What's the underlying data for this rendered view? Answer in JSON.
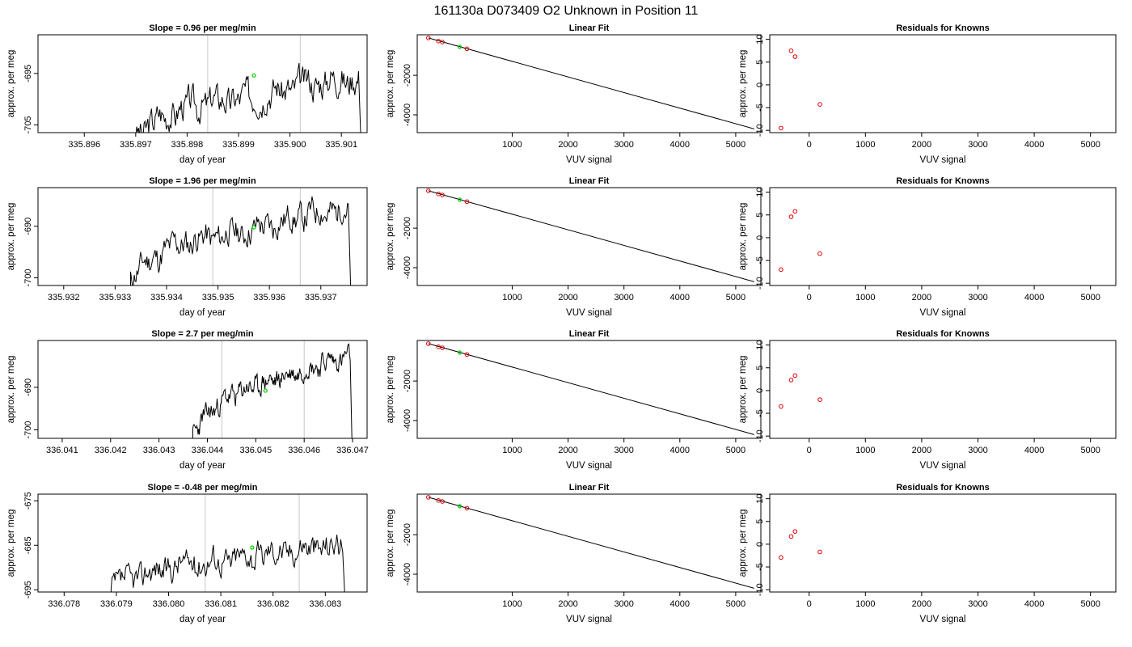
{
  "figure": {
    "title": "161130a      D073409   O2 Unknown in Position  11"
  },
  "colors": {
    "trace": "#000000",
    "marker_known": "#dd0000",
    "marker_unknown": "#00cc00",
    "vline": "#c8c8c8"
  },
  "chart_data": [
    {
      "type": "line",
      "title": "Slope =  0.96  per meg/min",
      "xlabel": "day of year",
      "ylabel": "approx. per meg",
      "xlim": [
        335.8951,
        335.9015
      ],
      "ylim": [
        -706.5,
        -687.5
      ],
      "xticks": [
        "335.896",
        "335.897",
        "335.898",
        "335.899",
        "335.900",
        "335.901"
      ],
      "yticks": [
        "-695",
        "-705"
      ],
      "vlines": [
        335.8984,
        335.9002
      ],
      "marker": [
        335.8993,
        -695.4
      ],
      "trace": {
        "start": 335.897,
        "end": 335.9014,
        "base": -707,
        "rise": 11,
        "noise": 2.2,
        "drop_to": -708,
        "seed": 3,
        "bump": 0.5
      }
    },
    {
      "type": "line",
      "title": "Linear Fit",
      "xlabel": "VUV signal",
      "ylabel": "approx. per meg",
      "xlim": [
        -700,
        5450
      ],
      "ylim": [
        -4900,
        50
      ],
      "xticks": [
        "1000",
        "2000",
        "3000",
        "4000",
        "5000"
      ],
      "yticks": [
        "-2000",
        "-4000"
      ],
      "fit_line": [
        [
          -500,
          -110
        ],
        [
          5330,
          -4710
        ]
      ],
      "known_points": [
        [
          -500,
          -110
        ],
        [
          -320,
          -270
        ],
        [
          -250,
          -320
        ],
        [
          190,
          -660
        ]
      ],
      "unknown_point": [
        60,
        -560
      ]
    },
    {
      "type": "scatter",
      "title": "Residuals for Knowns",
      "xlabel": "VUV signal",
      "ylabel": "approx. per meg",
      "xlim": [
        -700,
        5450
      ],
      "ylim": [
        -10.5,
        11
      ],
      "xticks": [
        "0",
        "1000",
        "2000",
        "3000",
        "4000",
        "5000"
      ],
      "yticks": [
        "-10",
        "-5",
        "0",
        "5",
        "10"
      ],
      "points": [
        [
          -500,
          -9.5
        ],
        [
          -320,
          7.5
        ],
        [
          -250,
          6.2
        ],
        [
          190,
          -4.3
        ]
      ]
    },
    {
      "type": "line",
      "title": "Slope =  1.96  per meg/min",
      "xlabel": "day of year",
      "ylabel": "approx. per meg",
      "xlim": [
        335.9315,
        335.9379
      ],
      "ylim": [
        -701.5,
        -682.5
      ],
      "xticks": [
        "335.932",
        "335.933",
        "335.934",
        "335.935",
        "335.936",
        "335.937"
      ],
      "yticks": [
        "-690",
        "-700"
      ],
      "vlines": [
        335.9349,
        335.9366
      ],
      "marker": [
        335.9357,
        -690.2
      ],
      "trace": {
        "start": 335.9333,
        "end": 335.9376,
        "base": -700,
        "rise": 13,
        "noise": 2.0,
        "drop_to": -703,
        "seed": 11,
        "bump": 0.6
      }
    },
    {
      "type": "line",
      "title": "Linear Fit",
      "xlabel": "VUV signal",
      "ylabel": "approx. per meg",
      "xlim": [
        -700,
        5450
      ],
      "ylim": [
        -4900,
        50
      ],
      "xticks": [
        "1000",
        "2000",
        "3000",
        "4000",
        "5000"
      ],
      "yticks": [
        "-2000",
        "-4000"
      ],
      "fit_line": [
        [
          -500,
          -110
        ],
        [
          5330,
          -4710
        ]
      ],
      "known_points": [
        [
          -500,
          -110
        ],
        [
          -320,
          -270
        ],
        [
          -250,
          -320
        ],
        [
          190,
          -660
        ]
      ],
      "unknown_point": [
        60,
        -560
      ]
    },
    {
      "type": "scatter",
      "title": "Residuals for Knowns",
      "xlabel": "VUV signal",
      "ylabel": "approx. per meg",
      "xlim": [
        -700,
        5450
      ],
      "ylim": [
        -10.5,
        11
      ],
      "xticks": [
        "0",
        "1000",
        "2000",
        "3000",
        "4000",
        "5000"
      ],
      "yticks": [
        "-10",
        "-5",
        "0",
        "5",
        "10"
      ],
      "points": [
        [
          -500,
          -7
        ],
        [
          -320,
          4.6
        ],
        [
          -250,
          5.8
        ],
        [
          190,
          -3.5
        ]
      ]
    },
    {
      "type": "line",
      "title": "Slope =  2.7  per meg/min",
      "xlabel": "day of year",
      "ylabel": "approx. per meg",
      "xlim": [
        336.0405,
        336.0473
      ],
      "ylim": [
        -702,
        -679
      ],
      "xticks": [
        "336.041",
        "336.042",
        "336.043",
        "336.044",
        "336.045",
        "336.046",
        "336.047"
      ],
      "yticks": [
        "-690",
        "-700"
      ],
      "vlines": [
        336.0443,
        336.046
      ],
      "marker": [
        336.0452,
        -690.8
      ],
      "trace": {
        "start": 336.0437,
        "end": 336.047,
        "base": -701,
        "rise": 18,
        "noise": 1.8,
        "drop_to": -703,
        "seed": 23,
        "bump": 0.4
      }
    },
    {
      "type": "line",
      "title": "Linear Fit",
      "xlabel": "VUV signal",
      "ylabel": "approx. per meg",
      "xlim": [
        -700,
        5450
      ],
      "ylim": [
        -4900,
        50
      ],
      "xticks": [
        "1000",
        "2000",
        "3000",
        "4000",
        "5000"
      ],
      "yticks": [
        "-2000",
        "-4000"
      ],
      "fit_line": [
        [
          -500,
          -110
        ],
        [
          5330,
          -4710
        ]
      ],
      "known_points": [
        [
          -500,
          -110
        ],
        [
          -320,
          -270
        ],
        [
          -250,
          -320
        ],
        [
          190,
          -660
        ]
      ],
      "unknown_point": [
        60,
        -560
      ]
    },
    {
      "type": "scatter",
      "title": "Residuals for Knowns",
      "xlabel": "VUV signal",
      "ylabel": "approx. per meg",
      "xlim": [
        -700,
        5450
      ],
      "ylim": [
        -10.5,
        11
      ],
      "xticks": [
        "0",
        "1000",
        "2000",
        "3000",
        "4000",
        "5000"
      ],
      "yticks": [
        "-10",
        "-5",
        "0",
        "5",
        "10"
      ],
      "points": [
        [
          -500,
          -3.5
        ],
        [
          -320,
          2.3
        ],
        [
          -250,
          3.3
        ],
        [
          190,
          -2
        ]
      ]
    },
    {
      "type": "line",
      "title": "Slope =  -0.48  per meg/min",
      "xlabel": "day of year",
      "ylabel": "approx. per meg",
      "xlim": [
        336.0775,
        336.0838
      ],
      "ylim": [
        -695.5,
        -673.5
      ],
      "xticks": [
        "336.078",
        "336.079",
        "336.080",
        "336.081",
        "336.082",
        "336.083"
      ],
      "yticks": [
        "-675",
        "-685",
        "-695"
      ],
      "vlines": [
        336.0807,
        336.0825
      ],
      "marker": [
        336.0816,
        -685.5
      ],
      "trace": {
        "start": 336.0789,
        "end": 336.0834,
        "base": -695,
        "rise": 10,
        "noise": 2.3,
        "drop_to": -697,
        "seed": 37,
        "bump": 0.3
      }
    },
    {
      "type": "line",
      "title": "Linear Fit",
      "xlabel": "VUV signal",
      "ylabel": "approx. per meg",
      "xlim": [
        -700,
        5450
      ],
      "ylim": [
        -4900,
        50
      ],
      "xticks": [
        "1000",
        "2000",
        "3000",
        "4000",
        "5000"
      ],
      "yticks": [
        "-2000",
        "-4000"
      ],
      "fit_line": [
        [
          -500,
          -110
        ],
        [
          5330,
          -4710
        ]
      ],
      "known_points": [
        [
          -500,
          -110
        ],
        [
          -320,
          -270
        ],
        [
          -250,
          -320
        ],
        [
          190,
          -660
        ]
      ],
      "unknown_point": [
        60,
        -560
      ]
    },
    {
      "type": "scatter",
      "title": "Residuals for Knowns",
      "xlabel": "VUV signal",
      "ylabel": "approx. per meg",
      "xlim": [
        -700,
        5450
      ],
      "ylim": [
        -10.5,
        11
      ],
      "xticks": [
        "0",
        "1000",
        "2000",
        "3000",
        "4000",
        "5000"
      ],
      "yticks": [
        "-10",
        "-5",
        "0",
        "5",
        "10"
      ],
      "points": [
        [
          -500,
          -2.9
        ],
        [
          -320,
          1.7
        ],
        [
          -250,
          2.8
        ],
        [
          190,
          -1.7
        ]
      ]
    }
  ]
}
